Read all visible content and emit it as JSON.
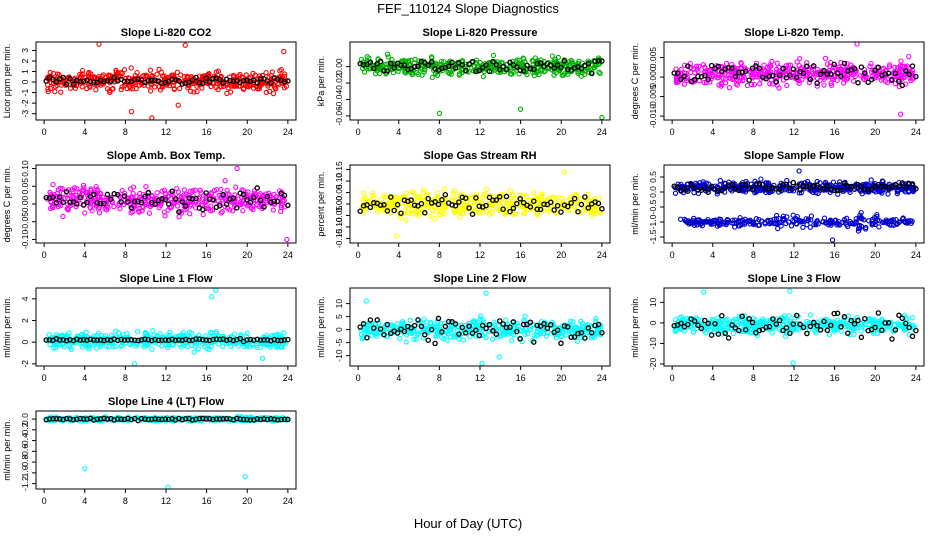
{
  "figure": {
    "title": "FEF_110124  Slope Diagnostics",
    "xlabel": "Hour of Day (UTC)"
  },
  "chart_data": [
    {
      "type": "scatter",
      "title": "Slope Li-820 CO2",
      "ylabel": "Licor ppm per min.",
      "ylim": [
        -3.6,
        3.8
      ],
      "yticks": [
        -3,
        -2,
        -1,
        0,
        1,
        2,
        3
      ],
      "color": "#ff0000",
      "center": 0.1,
      "spread": 0.9,
      "black_spread": 0.3,
      "bands": [],
      "outliers": [
        [
          5.4,
          3.6
        ],
        [
          8.6,
          -2.8
        ],
        [
          10.6,
          -3.4
        ],
        [
          13.9,
          3.5
        ],
        [
          23.6,
          2.9
        ],
        [
          13.2,
          -2.2
        ]
      ]
    },
    {
      "type": "scatter",
      "title": "Slope Li-820 Pressure",
      "ylabel": "kPa per min.",
      "ylim": [
        -0.065,
        0.03
      ],
      "yticks": [
        0.0,
        -0.02,
        -0.04,
        -0.06
      ],
      "ytick_labels": [
        "0.00",
        "-0.02",
        "-0.04",
        "-0.06"
      ],
      "color": "#00b000",
      "center": 0.0,
      "spread": 0.01,
      "black_spread": 0.008,
      "bands": [],
      "outliers": [
        [
          8.0,
          -0.057
        ],
        [
          16.0,
          -0.052
        ],
        [
          24.0,
          -0.062
        ]
      ]
    },
    {
      "type": "scatter",
      "title": "Slope Li-820 Temp.",
      "ylabel": "degrees C per min.",
      "ylim": [
        -0.011,
        0.009
      ],
      "yticks": [
        -0.01,
        -0.005,
        0.0,
        0.005
      ],
      "ytick_labels": [
        "-0.010",
        "-0.005",
        "0.000",
        "0.005"
      ],
      "color": "#ff00ff",
      "center": 0.001,
      "spread": 0.0028,
      "black_spread": 0.0025,
      "bands": [],
      "outliers": [
        [
          18.2,
          0.0085
        ],
        [
          22.5,
          -0.0095
        ]
      ]
    },
    {
      "type": "scatter",
      "title": "Slope Amb. Box Temp.",
      "ylabel": "degrees C per min.",
      "ylim": [
        -0.11,
        0.11
      ],
      "yticks": [
        -0.1,
        -0.05,
        0.0,
        0.05,
        0.1
      ],
      "ytick_labels": [
        "-0.10",
        "-0.05",
        "0.00",
        "0.05",
        "0.10"
      ],
      "color": "#ff00ff",
      "center": 0.01,
      "spread": 0.035,
      "black_spread": 0.025,
      "bands": [],
      "outliers": [
        [
          23.9,
          -0.1
        ],
        [
          19.0,
          0.1
        ]
      ]
    },
    {
      "type": "scatter",
      "title": "Slope Gas Stream RH",
      "ylabel": "percent per min.",
      "ylim": [
        -0.17,
        0.17
      ],
      "yticks": [
        -0.15,
        -0.1,
        -0.05,
        0.0,
        0.05,
        0.1,
        0.15
      ],
      "ytick_labels": [
        "-0.15",
        "-0.10",
        "-0.05",
        "0.00",
        "0.05",
        "0.10",
        "0.15"
      ],
      "color": "#ffff00",
      "center": 0.0,
      "spread": 0.05,
      "black_spread": 0.04,
      "bands": [],
      "outliers": [
        [
          3.8,
          -0.14
        ],
        [
          20.3,
          0.14
        ]
      ]
    },
    {
      "type": "scatter",
      "title": "Slope Sample Flow",
      "ylabel": "ml/min per min.",
      "ylim": [
        -1.7,
        0.9
      ],
      "yticks": [
        -1.5,
        -1.0,
        -0.5,
        0.0,
        0.5
      ],
      "ytick_labels": [
        "-1.5",
        "-1.0",
        "-0.5",
        "0.0",
        "0.5"
      ],
      "color": "#0000cc",
      "center": 0.15,
      "spread": 0.18,
      "black_spread": 0.15,
      "bands": [
        {
          "center": -1.0,
          "spread": 0.12,
          "ranges": [
            [
              0.5,
              10
            ],
            [
              14,
              17
            ],
            [
              21,
              24
            ]
          ]
        },
        {
          "center": -1.0,
          "spread": 0.25,
          "ranges": [
            [
              10,
              14
            ],
            [
              17,
              21
            ]
          ]
        }
      ],
      "outliers": [
        [
          15.8,
          -1.6
        ],
        [
          12.5,
          0.7
        ]
      ]
    },
    {
      "type": "scatter",
      "title": "Slope Line 1 Flow",
      "ylabel": "ml/min per min.",
      "ylim": [
        -2.2,
        5.0
      ],
      "yticks": [
        -2,
        0,
        2,
        4
      ],
      "color": "#00ffff",
      "center": 0.2,
      "spread": 0.7,
      "black_spread": 0.1,
      "bands": [],
      "outliers": [
        [
          16.5,
          4.2
        ],
        [
          16.9,
          4.8
        ],
        [
          8.9,
          -2.0
        ],
        [
          21.5,
          -1.5
        ]
      ]
    },
    {
      "type": "scatter",
      "title": "Slope Line 2 Flow",
      "ylabel": "ml/min per min.",
      "ylim": [
        -14,
        16
      ],
      "yticks": [
        -10,
        -5,
        0,
        5,
        10
      ],
      "color": "#00ffff",
      "center": 0.0,
      "spread": 3.5,
      "black_spread": 4.5,
      "bands": [],
      "outliers": [
        [
          12.2,
          -13
        ],
        [
          13.9,
          -10.5
        ],
        [
          12.6,
          14
        ],
        [
          0.8,
          11
        ]
      ]
    },
    {
      "type": "scatter",
      "title": "Slope Line 3 Flow",
      "ylabel": "ml/min per min.",
      "ylim": [
        -21,
        17
      ],
      "yticks": [
        -20,
        -10,
        0,
        10
      ],
      "color": "#00ffff",
      "center": -1.0,
      "spread": 4.0,
      "black_spread": 5.0,
      "bands": [],
      "outliers": [
        [
          11.9,
          -19.5
        ],
        [
          11.6,
          15.5
        ],
        [
          3.1,
          15
        ]
      ]
    },
    {
      "type": "scatter",
      "title": "Slope Line 4 (LT) Flow",
      "ylabel": "ml/min per min.",
      "ylim": [
        -1.3,
        0.15
      ],
      "yticks": [
        -1.2,
        -1.0,
        -0.8,
        -0.6,
        -0.4,
        -0.2,
        0.0
      ],
      "ytick_labels": [
        "-1.2",
        "-1.0",
        "-0.8",
        "-0.6",
        "-0.4",
        "-0.2",
        "0.0"
      ],
      "color": "#00ffff",
      "center": 0.0,
      "spread": 0.03,
      "black_spread": 0.02,
      "bands": [],
      "outliers": [
        [
          4.0,
          -0.92
        ],
        [
          12.2,
          -1.27
        ],
        [
          19.8,
          -1.07
        ]
      ]
    }
  ],
  "x_axis": {
    "range": [
      -0.8,
      24.8
    ],
    "ticks": [
      0,
      4,
      8,
      12,
      16,
      20,
      24
    ]
  }
}
